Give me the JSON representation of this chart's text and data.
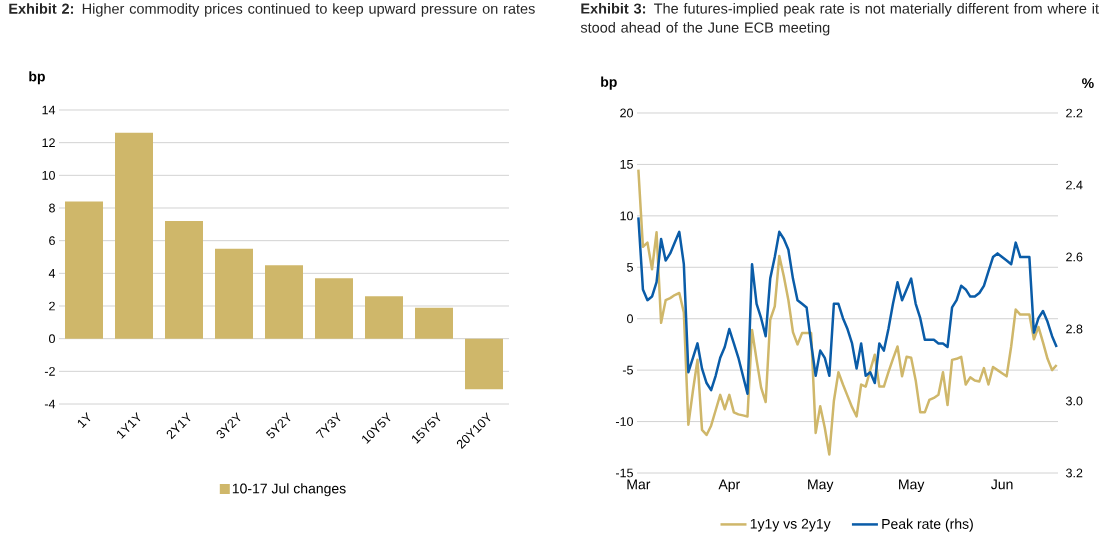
{
  "chart_data": [
    {
      "type": "bar",
      "title": "**Exhibit 2:**    Higher commodity prices continued to keep upward pressure on rates",
      "ylabel": "bp",
      "categories": [
        "1Y",
        "1Y1Y",
        "2Y1Y",
        "3Y2Y",
        "5Y2Y",
        "7Y3Y",
        "10Y5Y",
        "15Y5Y",
        "20Y10Y"
      ],
      "series": [
        {
          "name": "10-17 Jul changes",
          "color": "#cfb76a",
          "values": [
            8.4,
            12.6,
            7.2,
            5.5,
            4.5,
            3.7,
            2.6,
            1.9,
            -3.1
          ]
        }
      ],
      "ylim": [
        -4,
        14
      ],
      "yticks": [
        -4,
        -2,
        0,
        2,
        4,
        6,
        8,
        10,
        12,
        14
      ],
      "grid": "y",
      "legend": "bottom"
    },
    {
      "type": "line",
      "title": "**Exhibit 3:**    The futures-implied peak rate is not materially different from where it stood ahead of the June ECB meeting",
      "ylabel": "bp",
      "y2label": "%",
      "categories": [
        "Mar",
        null,
        null,
        null,
        null,
        null,
        null,
        null,
        null,
        null,
        null,
        null,
        null,
        null,
        null,
        null,
        null,
        null,
        null,
        null,
        "Apr",
        null,
        null,
        null,
        null,
        null,
        null,
        null,
        null,
        null,
        null,
        null,
        null,
        null,
        null,
        null,
        null,
        null,
        null,
        null,
        "May",
        null,
        null,
        null,
        null,
        null,
        null,
        null,
        null,
        null,
        null,
        null,
        null,
        null,
        null,
        null,
        null,
        null,
        null,
        null,
        "May",
        null,
        null,
        null,
        null,
        null,
        null,
        null,
        null,
        null,
        null,
        null,
        null,
        null,
        null,
        null,
        null,
        null,
        null,
        null,
        "Jun",
        null,
        null,
        null,
        null,
        null,
        null,
        null,
        null,
        null,
        null,
        null,
        null
      ],
      "series": [
        {
          "name": "1y1y vs 2y1y",
          "color": "#cfb76a",
          "values": [
            14.5,
            7.0,
            7.4,
            4.8,
            8.4,
            -0.4,
            1.8,
            2.0,
            2.3,
            2.5,
            0.6,
            -10.3,
            -7.0,
            -4.0,
            -10.8,
            -11.3,
            -10.4,
            -8.9,
            -7.4,
            -8.8,
            -7.4,
            -9.1,
            -9.3,
            -9.4,
            -9.5,
            -1.1,
            -4.0,
            -6.7,
            -8.1,
            -0.1,
            1.2,
            6.1,
            4.1,
            1.8,
            -1.3,
            -2.5,
            -1.4,
            -1.4,
            -1.4,
            -11.1,
            -8.5,
            -10.6,
            -13.2,
            -8.0,
            -5.2,
            -6.4,
            -7.5,
            -8.6,
            -9.5,
            -6.4,
            -6.6,
            -5.0,
            -3.5,
            -6.6,
            -6.6,
            -5.2,
            -3.9,
            -2.7,
            -5.6,
            -3.7,
            -3.8,
            -6.0,
            -9.1,
            -9.1,
            -7.9,
            -7.7,
            -7.4,
            -5.2,
            -8.4,
            -4.0,
            -3.9,
            -3.7,
            -6.4,
            -5.7,
            -6.0,
            -6.1,
            -4.8,
            -6.4,
            -4.7,
            -5.0,
            -5.3,
            -5.6,
            -2.7,
            0.9,
            0.4,
            0.4,
            0.4,
            -2.0,
            -0.8,
            -2.3,
            -3.9,
            -5.0,
            -4.5
          ]
        },
        {
          "name": "Peak rate (rhs)",
          "color": "#0a5ca8",
          "axis": "y2",
          "values": [
            2.49,
            2.69,
            2.72,
            2.71,
            2.67,
            2.55,
            2.61,
            2.59,
            2.56,
            2.53,
            2.62,
            2.92,
            2.88,
            2.84,
            2.91,
            2.95,
            2.97,
            2.93,
            2.88,
            2.85,
            2.8,
            2.84,
            2.88,
            2.93,
            2.98,
            2.62,
            2.73,
            2.77,
            2.82,
            2.66,
            2.6,
            2.53,
            2.55,
            2.58,
            2.66,
            2.72,
            2.73,
            2.74,
            2.84,
            2.93,
            2.86,
            2.88,
            2.93,
            2.73,
            2.73,
            2.77,
            2.8,
            2.84,
            2.91,
            2.84,
            2.93,
            2.92,
            2.95,
            2.84,
            2.86,
            2.8,
            2.73,
            2.67,
            2.72,
            2.69,
            2.66,
            2.73,
            2.77,
            2.83,
            2.83,
            2.83,
            2.84,
            2.84,
            2.85,
            2.74,
            2.72,
            2.68,
            2.69,
            2.71,
            2.71,
            2.7,
            2.68,
            2.64,
            2.6,
            2.59,
            2.6,
            2.61,
            2.62,
            2.56,
            2.6,
            2.6,
            2.6,
            2.81,
            2.77,
            2.75,
            2.78,
            2.82,
            2.85
          ]
        }
      ],
      "ylim": [
        -15,
        20
      ],
      "yticks": [
        -15,
        -10,
        -5,
        0,
        5,
        10,
        15,
        20
      ],
      "y2lim": [
        3.2,
        2.2
      ],
      "y2ticks": [
        {
          "value": 2.2,
          "label": "2.2"
        },
        {
          "value": 2.4,
          "label": "2.4"
        },
        {
          "value": 2.6,
          "label": "2.6"
        },
        {
          "value": 2.8,
          "label": "2.8"
        },
        {
          "value": 3.0,
          "label": "3.0"
        },
        {
          "value": 3.2,
          "label": "3.2"
        }
      ],
      "grid": "y",
      "legend": "bottom"
    }
  ]
}
